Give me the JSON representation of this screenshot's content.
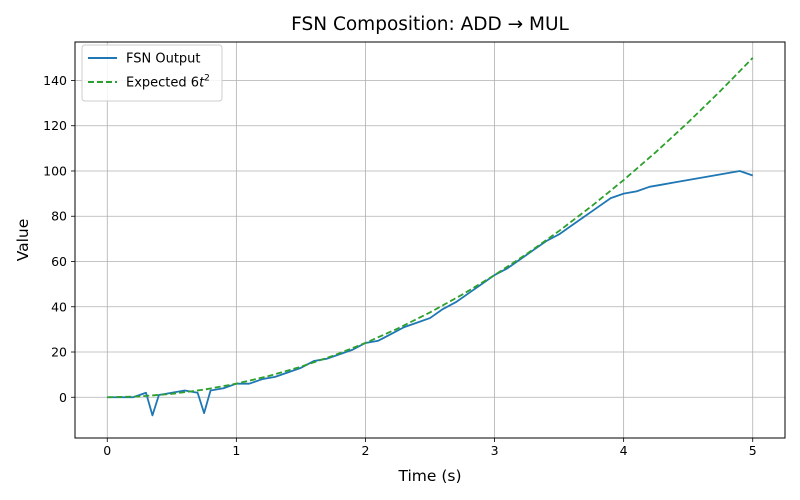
{
  "chart_data": {
    "type": "line",
    "title": "FSN Composition: ADD → MUL",
    "xlabel": "Time (s)",
    "ylabel": "Value",
    "xlim": [
      -0.25,
      5.25
    ],
    "ylim": [
      -18,
      157
    ],
    "xticks": [
      0,
      1,
      2,
      3,
      4,
      5
    ],
    "yticks": [
      0,
      20,
      40,
      60,
      80,
      100,
      120,
      140
    ],
    "grid": true,
    "legend": {
      "placement": "top-left",
      "entries": [
        {
          "label": "FSN Output",
          "style": "solid",
          "color": "#1f77b4"
        },
        {
          "label": "Expected 6",
          "label_math_base": "t",
          "label_math_sup": "2",
          "style": "dashed",
          "color": "#2ca02c"
        }
      ]
    },
    "series": [
      {
        "name": "FSN Output",
        "color": "#1f77b4",
        "style": "solid",
        "x": [
          0,
          0.1,
          0.2,
          0.3,
          0.35,
          0.4,
          0.5,
          0.6,
          0.7,
          0.75,
          0.8,
          0.9,
          1.0,
          1.1,
          1.2,
          1.3,
          1.4,
          1.5,
          1.6,
          1.7,
          1.8,
          1.9,
          2.0,
          2.1,
          2.2,
          2.3,
          2.4,
          2.5,
          2.6,
          2.7,
          2.8,
          2.9,
          3.0,
          3.1,
          3.2,
          3.3,
          3.4,
          3.5,
          3.6,
          3.7,
          3.8,
          3.9,
          4.0,
          4.1,
          4.2,
          4.3,
          4.4,
          4.5,
          4.6,
          4.7,
          4.8,
          4.9,
          5.0
        ],
        "y": [
          0,
          0,
          0,
          2,
          -8,
          1,
          2,
          3,
          2,
          -7,
          3,
          4,
          6,
          6,
          8,
          9,
          11,
          13,
          16,
          17,
          19,
          21,
          24,
          25,
          28,
          31,
          33,
          35,
          39,
          42,
          46,
          50,
          54,
          57,
          61,
          65,
          69,
          72,
          76,
          80,
          84,
          88,
          90,
          91,
          93,
          94,
          95,
          96,
          97,
          98,
          99,
          100,
          98
        ]
      },
      {
        "name": "Expected 6t²",
        "color": "#2ca02c",
        "style": "dashed",
        "x": [
          0,
          0.25,
          0.5,
          0.75,
          1.0,
          1.25,
          1.5,
          1.75,
          2.0,
          2.25,
          2.5,
          2.75,
          3.0,
          3.25,
          3.5,
          3.75,
          4.0,
          4.25,
          4.5,
          4.75,
          5.0
        ],
        "y": [
          0,
          0.375,
          1.5,
          3.375,
          6,
          9.375,
          13.5,
          18.375,
          24,
          30.375,
          37.5,
          45.375,
          54,
          63.375,
          73.5,
          84.375,
          96,
          108.375,
          121.5,
          135.375,
          150
        ]
      }
    ]
  }
}
